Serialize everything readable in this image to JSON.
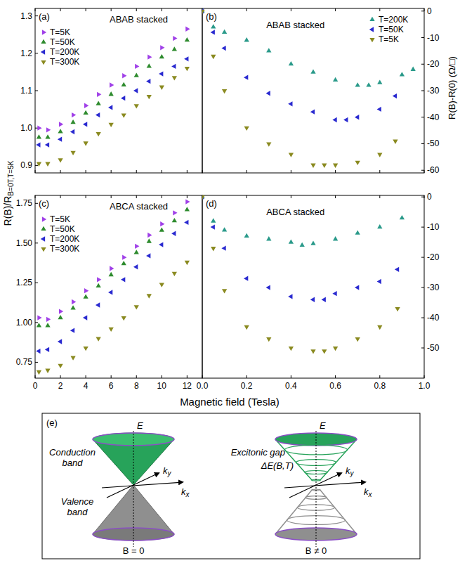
{
  "figure": {
    "x_label": "Magnetic field (Tesla)",
    "left_y_label": {
      "main": "R(B)/R",
      "sub": "B=0T,T=5K"
    },
    "right_y_label": "R(B)-R(0) (Ω/□)"
  },
  "chart_data": [
    {
      "panel": "(a)",
      "title": "ABAB stacked",
      "type": "scatter",
      "xlim": [
        0,
        13.2
      ],
      "xticks": [
        0,
        2,
        4,
        6,
        8,
        10,
        12
      ],
      "ylim": [
        0.88,
        1.32
      ],
      "yticks": [
        0.9,
        {
          "value": 1,
          "label": "1.0"
        },
        1.1,
        1.2,
        1.3
      ],
      "tick_labels": "y",
      "legend": "upper left",
      "x": [
        0.3,
        1,
        2,
        3,
        4,
        5,
        6,
        7,
        8,
        9,
        10,
        11,
        12
      ],
      "series": [
        {
          "name": "T=5K",
          "color": "#a040e8",
          "marker": "triangle-right",
          "values": [
            1.0,
            0.995,
            1.01,
            1.035,
            1.06,
            1.09,
            1.115,
            1.14,
            1.165,
            1.19,
            1.215,
            1.24,
            1.265
          ]
        },
        {
          "name": "T=50K",
          "color": "#2e8b2e",
          "marker": "triangle-up",
          "values": [
            0.975,
            0.975,
            0.99,
            1.015,
            1.04,
            1.065,
            1.09,
            1.115,
            1.14,
            1.165,
            1.19,
            1.21,
            1.235
          ]
        },
        {
          "name": "T=200K",
          "color": "#2a2ad0",
          "marker": "triangle-left",
          "values": [
            0.955,
            0.955,
            0.97,
            0.99,
            1.01,
            1.035,
            1.055,
            1.08,
            1.1,
            1.125,
            1.145,
            1.165,
            1.185
          ]
        },
        {
          "name": "T=300K",
          "color": "#8a8a20",
          "marker": "triangle-down",
          "values": [
            0.905,
            0.905,
            0.915,
            0.935,
            0.96,
            0.985,
            1.01,
            1.035,
            1.06,
            1.085,
            1.11,
            1.135,
            1.16
          ]
        }
      ]
    },
    {
      "panel": "(b)",
      "title": "ABAB stacked",
      "type": "scatter",
      "xlim": [
        0,
        1
      ],
      "xticks": [
        0,
        0.2,
        0.4,
        0.6,
        0.8,
        1
      ],
      "y2lim": [
        -61,
        1
      ],
      "y2ticks": [
        0,
        -10,
        -20,
        -30,
        -40,
        -50,
        -60
      ],
      "tick_labels": "y",
      "legend": "upper right",
      "series": [
        {
          "name": "T=200K",
          "color": "#2a9a8a",
          "marker": "triangle-up",
          "axis": "y2",
          "x": [
            0,
            0.05,
            0.1,
            0.2,
            0.3,
            0.4,
            0.5,
            0.6,
            0.7,
            0.75,
            0.8,
            0.9,
            0.95
          ],
          "values": [
            0,
            -6,
            -8,
            -11,
            -15,
            -20,
            -23,
            -26,
            -28,
            -28,
            -27,
            -24,
            -22
          ]
        },
        {
          "name": "T=50K",
          "color": "#2a2ad0",
          "marker": "triangle-left",
          "axis": "y2",
          "x": [
            0,
            0.05,
            0.1,
            0.2,
            0.3,
            0.4,
            0.5,
            0.6,
            0.65,
            0.7,
            0.8,
            0.87
          ],
          "values": [
            0,
            -8,
            -14,
            -25,
            -31,
            -35,
            -38,
            -41,
            -41,
            -40,
            -37,
            -32
          ]
        },
        {
          "name": "T=5K",
          "color": "#8a8a20",
          "marker": "triangle-down",
          "axis": "y2",
          "x": [
            0,
            0.05,
            0.1,
            0.2,
            0.3,
            0.4,
            0.5,
            0.55,
            0.6,
            0.7,
            0.8,
            0.87
          ],
          "values": [
            0,
            -17,
            -30,
            -44,
            -50,
            -54,
            -58,
            -58,
            -58,
            -57,
            -54,
            -49
          ]
        }
      ]
    },
    {
      "panel": "(c)",
      "title": "ABCA stacked",
      "type": "scatter",
      "xlim": [
        0,
        13.2
      ],
      "xticks": [
        0,
        2,
        4,
        6,
        8,
        10,
        12
      ],
      "ylim": [
        0.65,
        1.8
      ],
      "yticks": [
        0.75,
        {
          "value": 1,
          "label": "1.00"
        },
        1.25,
        {
          "value": 1.5,
          "label": "1.50"
        },
        1.75
      ],
      "tick_labels": true,
      "legend": "upper left",
      "x": [
        0.3,
        1,
        2,
        3,
        4,
        5,
        6,
        7,
        8,
        9,
        10,
        11,
        12
      ],
      "series": [
        {
          "name": "T=5K",
          "color": "#a040e8",
          "marker": "triangle-right",
          "values": [
            1.03,
            1.02,
            1.07,
            1.13,
            1.2,
            1.27,
            1.34,
            1.41,
            1.48,
            1.55,
            1.62,
            1.69,
            1.76
          ]
        },
        {
          "name": "T=50K",
          "color": "#2e8b2e",
          "marker": "triangle-up",
          "values": [
            0.98,
            0.98,
            1.03,
            1.09,
            1.16,
            1.23,
            1.3,
            1.37,
            1.44,
            1.51,
            1.58,
            1.64,
            1.71
          ]
        },
        {
          "name": "T=200K",
          "color": "#2a2ad0",
          "marker": "triangle-left",
          "values": [
            0.82,
            0.83,
            0.88,
            0.95,
            1.03,
            1.11,
            1.19,
            1.27,
            1.35,
            1.42,
            1.49,
            1.56,
            1.63
          ]
        },
        {
          "name": "T=300K",
          "color": "#8a8a20",
          "marker": "triangle-down",
          "values": [
            0.69,
            0.7,
            0.73,
            0.78,
            0.84,
            0.9,
            0.96,
            1.03,
            1.1,
            1.17,
            1.24,
            1.31,
            1.38
          ]
        }
      ]
    },
    {
      "panel": "(d)",
      "title": "ABCA stacked",
      "type": "scatter",
      "xlim": [
        0,
        1
      ],
      "xticks": [
        {
          "value": 0,
          "label": "0.0"
        },
        0.2,
        0.4,
        0.6,
        0.8,
        {
          "value": 1,
          "label": "1.0"
        }
      ],
      "y2lim": [
        -60,
        0.5
      ],
      "y2ticks": [
        0,
        -10,
        -20,
        -30,
        -40,
        -50
      ],
      "tick_labels": true,
      "series": [
        {
          "color": "#2a9a8a",
          "marker": "triangle-up",
          "axis": "y2",
          "x": [
            0,
            0.05,
            0.1,
            0.2,
            0.3,
            0.4,
            0.45,
            0.5,
            0.6,
            0.7,
            0.8,
            0.9
          ],
          "values": [
            0,
            -8,
            -11,
            -13,
            -14,
            -15,
            -16,
            -15.5,
            -14,
            -12,
            -10,
            -7
          ]
        },
        {
          "color": "#2a2ad0",
          "marker": "triangle-left",
          "axis": "y2",
          "x": [
            0,
            0.05,
            0.1,
            0.2,
            0.3,
            0.4,
            0.5,
            0.55,
            0.6,
            0.7,
            0.8,
            0.88
          ],
          "values": [
            0,
            -10,
            -17,
            -27,
            -30,
            -33,
            -34,
            -34,
            -32,
            -30,
            -28,
            -24
          ]
        },
        {
          "color": "#8a8a20",
          "marker": "triangle-down",
          "axis": "y2",
          "x": [
            0,
            0.05,
            0.1,
            0.2,
            0.3,
            0.4,
            0.5,
            0.55,
            0.6,
            0.7,
            0.8,
            0.88
          ],
          "values": [
            0,
            -17,
            -31,
            -43,
            -47,
            -50,
            -51,
            -51,
            -50,
            -47,
            -43,
            -37
          ]
        }
      ]
    }
  ],
  "diagram": {
    "label": "(e)",
    "left": {
      "energy_axis": "E",
      "kx": {
        "main": "k",
        "sub": "x"
      },
      "ky": {
        "main": "k",
        "sub": "y"
      },
      "conduction": "Conduction band",
      "valence": "Valence band",
      "caption": "B = 0"
    },
    "right": {
      "energy_axis": "E",
      "kx": {
        "main": "k",
        "sub": "x"
      },
      "ky": {
        "main": "k",
        "sub": "y"
      },
      "gap_label": "Excitonic gap",
      "gap_symbol": "ΔE(B,T)",
      "caption": "B ≠ 0"
    }
  }
}
